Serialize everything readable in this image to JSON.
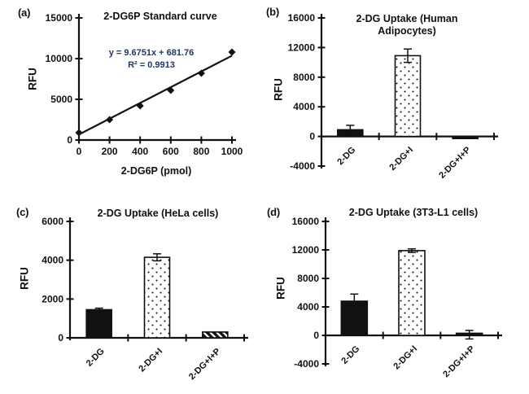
{
  "figure": {
    "letters": [
      "(a)",
      "(b)",
      "(c)",
      "(d)"
    ],
    "colors": {
      "ink": "#111111",
      "equation_text": "#1f3864",
      "background": "#ffffff",
      "bar_fill_white": "#ffffff"
    }
  },
  "chart_data": [
    {
      "type": "scatter",
      "title": "2-DG6P Standard curve",
      "ylabel": "RFU",
      "xlabel": "2-DG6P (pmol)",
      "xlim": [
        0,
        1000
      ],
      "ylim": [
        0,
        15000
      ],
      "xticks": [
        0,
        200,
        400,
        600,
        800,
        1000
      ],
      "yticks": [
        0,
        5000,
        10000,
        15000
      ],
      "x": [
        0,
        200,
        400,
        600,
        800,
        1000
      ],
      "y": [
        900,
        2500,
        4200,
        6100,
        8200,
        10800
      ],
      "marker": "diamond",
      "grid": false,
      "trendline": {
        "slope": 9.6751,
        "intercept": 681.76,
        "equation": "y = 9.6751x + 681.76",
        "r_squared": "R² = 0.9913"
      }
    },
    {
      "type": "bar",
      "title": "2-DG Uptake (Human Adipocytes)",
      "ylabel": "RFU",
      "ylim": [
        -4000,
        16000
      ],
      "yticks": [
        -4000,
        0,
        4000,
        8000,
        12000,
        16000
      ],
      "categories": [
        "2-DG",
        "2-DG+I",
        "2-DG+I+P"
      ],
      "values": [
        900,
        10900,
        -200
      ],
      "errors": [
        600,
        900,
        0
      ],
      "bar_styles": [
        "solid",
        "dots",
        "solid"
      ],
      "grid": false
    },
    {
      "type": "bar",
      "title": "2-DG Uptake (HeLa cells)",
      "ylabel": "RFU",
      "ylim": [
        0,
        6000
      ],
      "yticks": [
        0,
        2000,
        4000,
        6000
      ],
      "categories": [
        "2-DG",
        "2-DG+I",
        "2-DG+I+P"
      ],
      "values": [
        1450,
        4150,
        300
      ],
      "errors": [
        80,
        180,
        0
      ],
      "bar_styles": [
        "solid",
        "dots",
        "hatch"
      ],
      "grid": false
    },
    {
      "type": "bar",
      "title": "2-DG Uptake (3T3-L1 cells)",
      "ylabel": "RFU",
      "ylim": [
        -4000,
        16000
      ],
      "yticks": [
        -4000,
        0,
        4000,
        8000,
        12000,
        16000
      ],
      "categories": [
        "2-DG",
        "2-DG+I",
        "2-DG+I+P"
      ],
      "values": [
        4800,
        11900,
        100
      ],
      "errors": [
        1000,
        250,
        600
      ],
      "bar_styles": [
        "solid",
        "dots",
        "solid"
      ],
      "grid": false
    }
  ]
}
